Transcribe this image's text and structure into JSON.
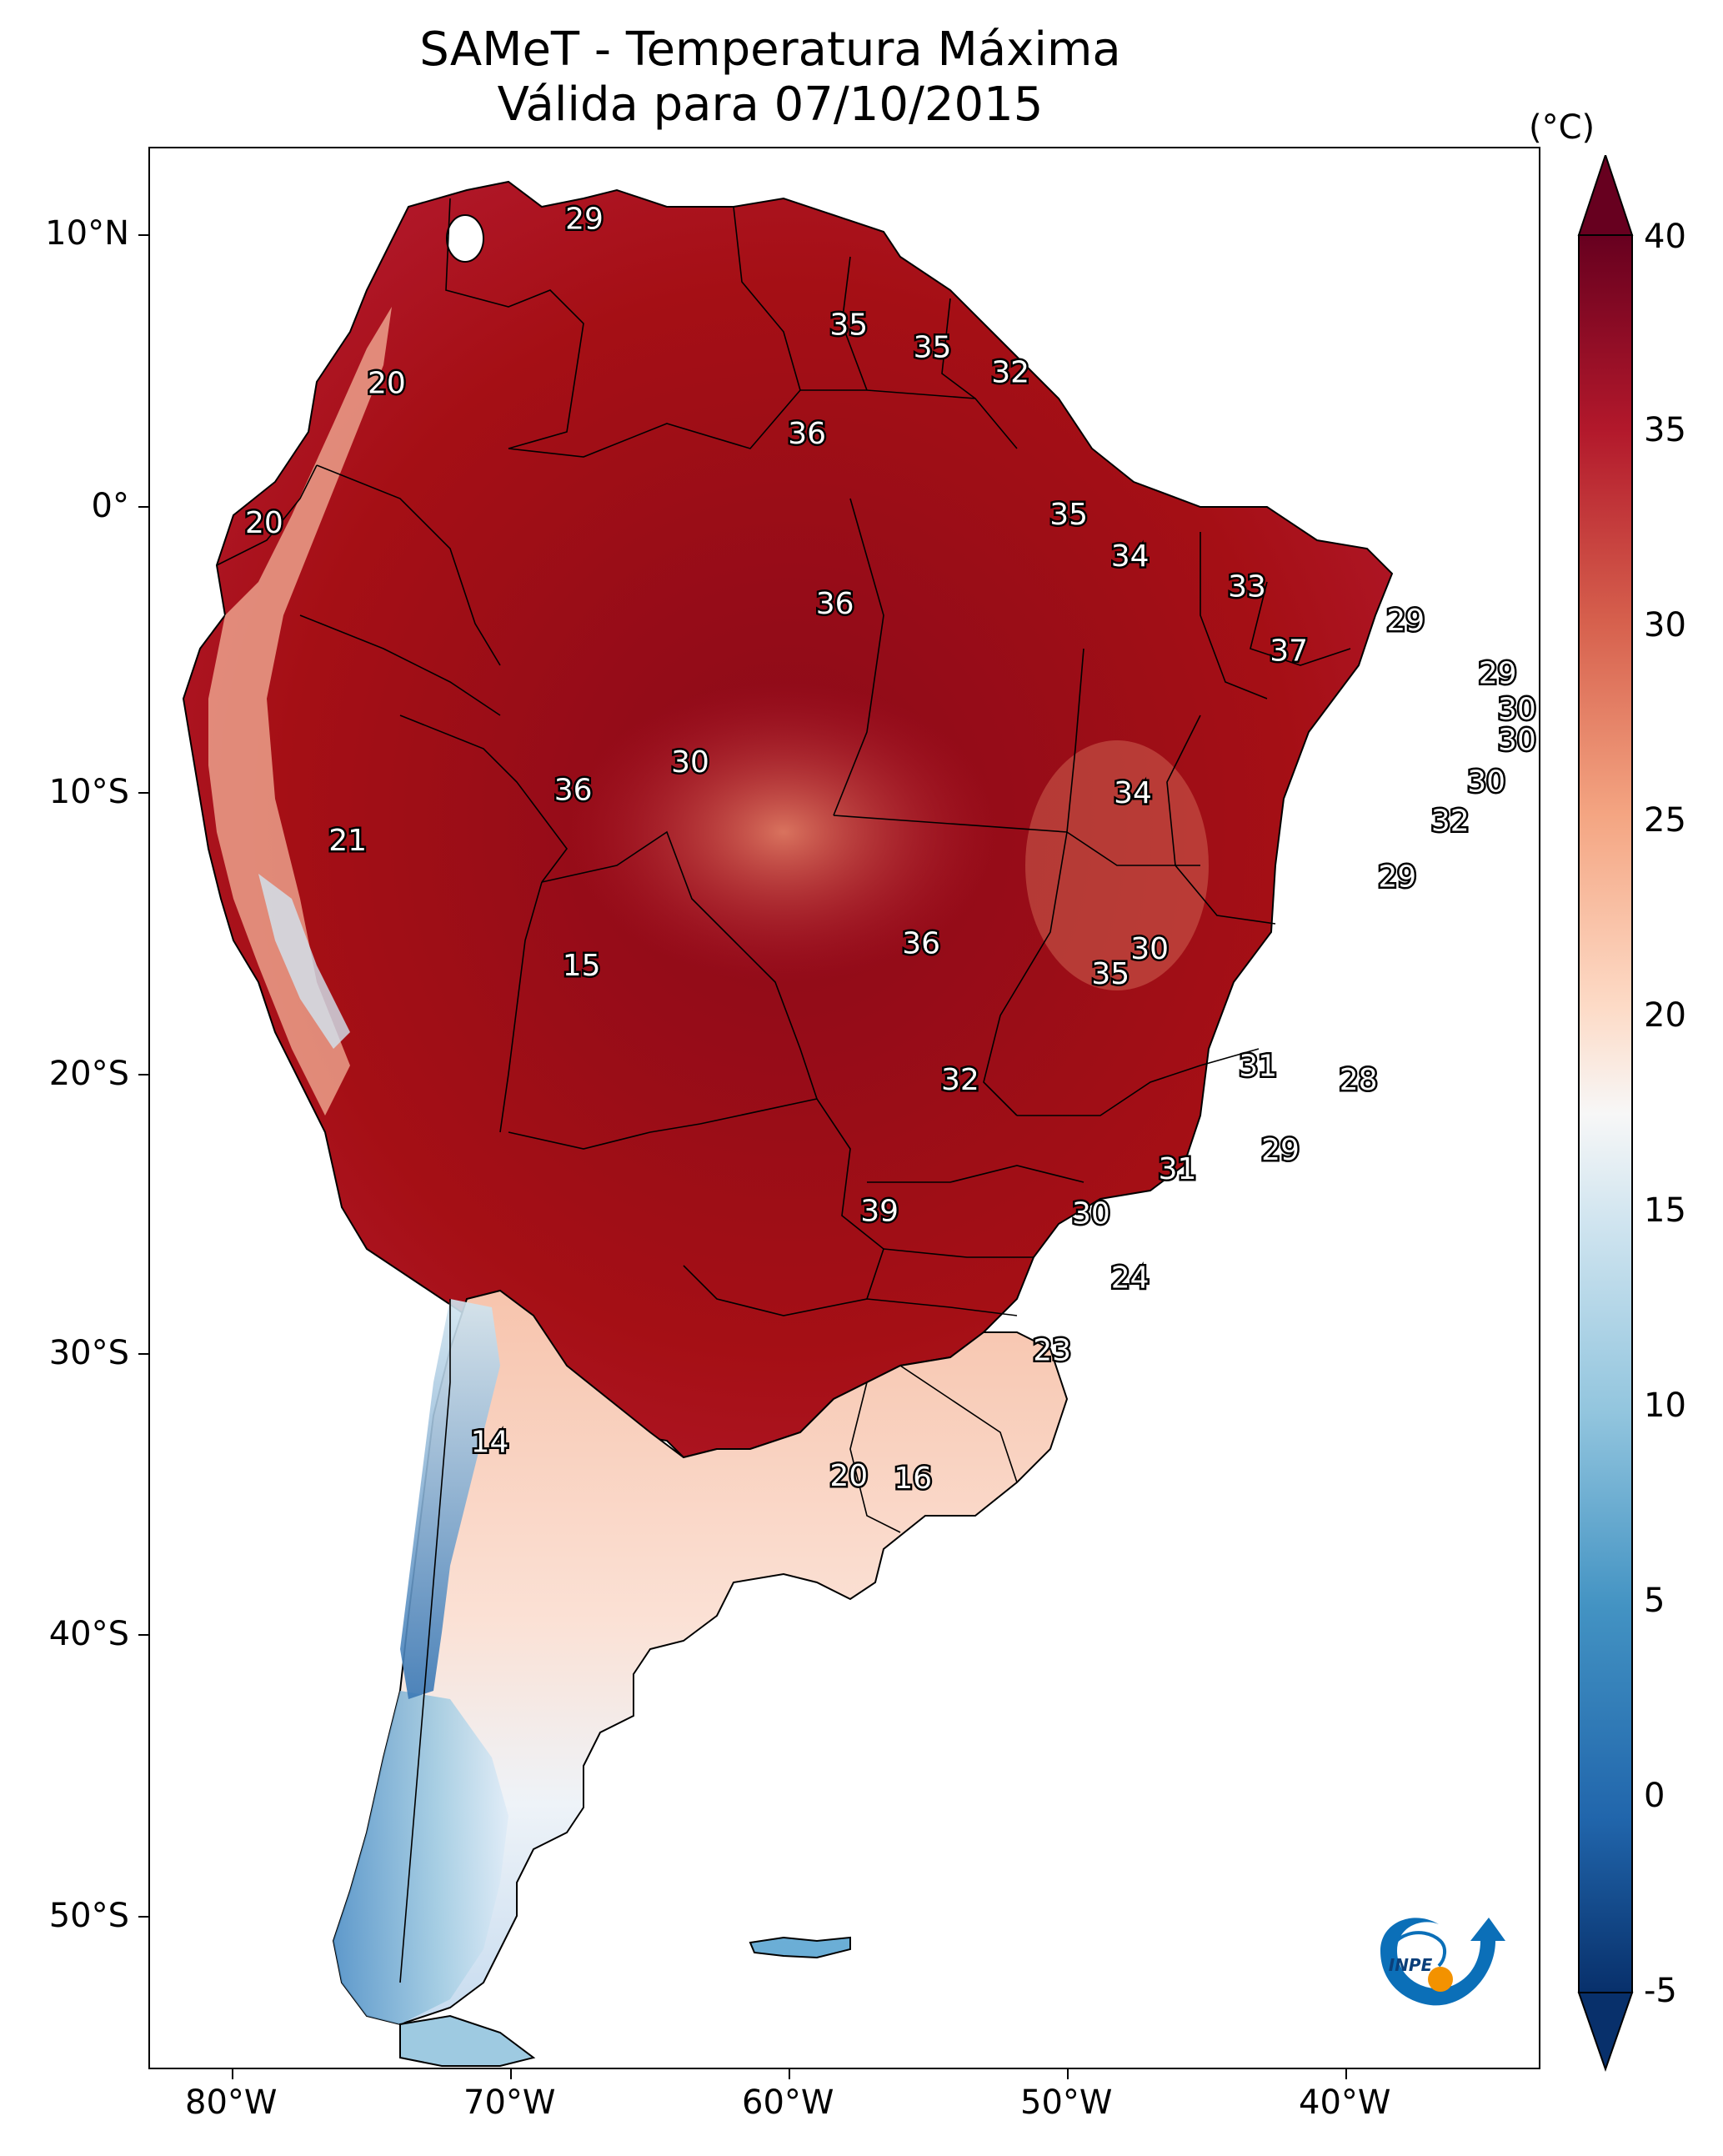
{
  "title": {
    "line1": "SAMeT - Temperatura Máxima",
    "line2": "Válida para 07/10/2015"
  },
  "axes": {
    "lat_ticks": [
      "10°N",
      "0°",
      "10°S",
      "20°S",
      "30°S",
      "40°S",
      "50°S"
    ],
    "lon_ticks": [
      "80°W",
      "70°W",
      "60°W",
      "50°W",
      "40°W"
    ]
  },
  "colorbar": {
    "unit": "(°C)",
    "ticks": [
      "40",
      "35",
      "30",
      "25",
      "20",
      "15",
      "10",
      "5",
      "0",
      "-5"
    ],
    "range": [
      -5,
      40
    ],
    "colors": [
      "#08306b",
      "#2166ac",
      "#4393c3",
      "#92c5de",
      "#d1e5f0",
      "#f7f7f7",
      "#fddbc7",
      "#f4a582",
      "#d6604d",
      "#b2182b",
      "#67001f"
    ]
  },
  "map": {
    "extent_lon": [
      -83,
      -33
    ],
    "extent_lat": [
      -56,
      13
    ],
    "land_colors": {
      "hot": "#a50f15",
      "very_hot": "#8b0a1a",
      "warm": "#c8453a",
      "mild": "#f4b39a",
      "cool": "#fbe0d3",
      "cold": "#c6dbef",
      "colder": "#6baed6",
      "coldest": "#2c6aa8"
    },
    "contour_labels": [
      {
        "text": "29",
        "lon": -67.4,
        "lat": 10.5
      },
      {
        "text": "35",
        "lon": -57.9,
        "lat": 6.7
      },
      {
        "text": "35",
        "lon": -54.9,
        "lat": 5.9
      },
      {
        "text": "32",
        "lon": -52.1,
        "lat": 5.0
      },
      {
        "text": "20",
        "lon": -74.5,
        "lat": 4.6
      },
      {
        "text": "36",
        "lon": -59.4,
        "lat": 2.8
      },
      {
        "text": "35",
        "lon": -50.0,
        "lat": -0.1
      },
      {
        "text": "20",
        "lon": -78.9,
        "lat": -0.4
      },
      {
        "text": "34",
        "lon": -47.8,
        "lat": -1.6
      },
      {
        "text": "33",
        "lon": -43.6,
        "lat": -2.7
      },
      {
        "text": "36",
        "lon": -58.4,
        "lat": -3.3
      },
      {
        "text": "29",
        "lon": -37.9,
        "lat": -3.9
      },
      {
        "text": "37",
        "lon": -42.1,
        "lat": -5.0
      },
      {
        "text": "29",
        "lon": -34.6,
        "lat": -5.8
      },
      {
        "text": "30",
        "lon": -33.9,
        "lat": -7.1
      },
      {
        "text": "30",
        "lon": -33.9,
        "lat": -8.2
      },
      {
        "text": "30",
        "lon": -63.6,
        "lat": -9.0
      },
      {
        "text": "30",
        "lon": -35.0,
        "lat": -9.7
      },
      {
        "text": "36",
        "lon": -67.8,
        "lat": -10.0
      },
      {
        "text": "34",
        "lon": -47.7,
        "lat": -10.1
      },
      {
        "text": "32",
        "lon": -36.3,
        "lat": -11.1
      },
      {
        "text": "21",
        "lon": -75.9,
        "lat": -11.8
      },
      {
        "text": "29",
        "lon": -38.2,
        "lat": -13.1
      },
      {
        "text": "36",
        "lon": -55.3,
        "lat": -15.5
      },
      {
        "text": "30",
        "lon": -47.1,
        "lat": -15.7
      },
      {
        "text": "15",
        "lon": -67.5,
        "lat": -16.3
      },
      {
        "text": "35",
        "lon": -48.5,
        "lat": -16.6
      },
      {
        "text": "31",
        "lon": -43.2,
        "lat": -19.9
      },
      {
        "text": "32",
        "lon": -53.9,
        "lat": -20.4
      },
      {
        "text": "28",
        "lon": -39.6,
        "lat": -20.4
      },
      {
        "text": "29",
        "lon": -42.4,
        "lat": -22.9
      },
      {
        "text": "31",
        "lon": -46.1,
        "lat": -23.6
      },
      {
        "text": "39",
        "lon": -56.8,
        "lat": -25.1
      },
      {
        "text": "30",
        "lon": -49.2,
        "lat": -25.2
      },
      {
        "text": "24",
        "lon": -47.8,
        "lat": -27.5
      },
      {
        "text": "23",
        "lon": -50.6,
        "lat": -30.1
      },
      {
        "text": "14",
        "lon": -70.8,
        "lat": -33.4
      },
      {
        "text": "20",
        "lon": -57.9,
        "lat": -34.6
      },
      {
        "text": "16",
        "lon": -55.6,
        "lat": -34.7
      }
    ]
  },
  "logo": {
    "text": "INPE",
    "colors": {
      "blue": "#0b6fb8",
      "orange": "#f39200"
    }
  }
}
